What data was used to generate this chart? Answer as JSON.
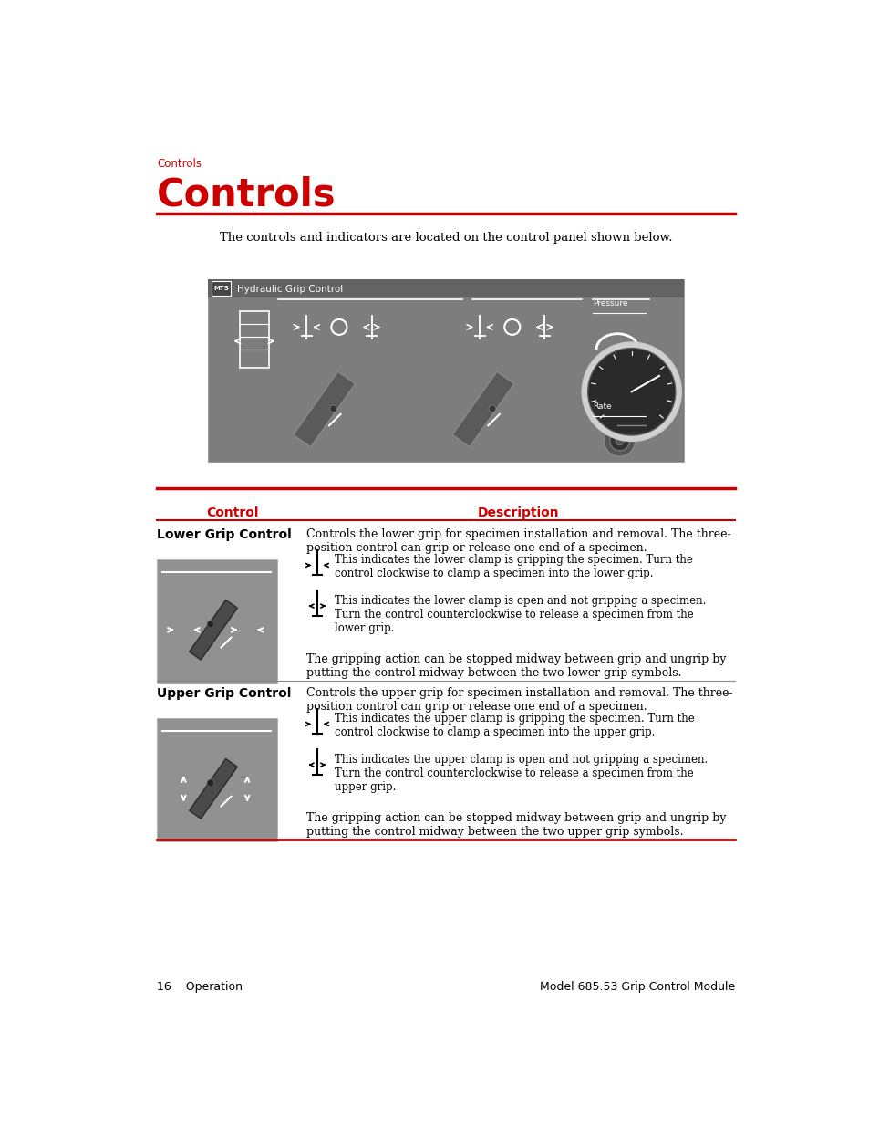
{
  "page_color": "#ffffff",
  "red_color": "#cc0000",
  "black_color": "#000000",
  "breadcrumb": "Controls",
  "title": "Controls",
  "intro_text": "The controls and indicators are located on the control panel shown below.",
  "table_header_control": "Control",
  "table_header_description": "Description",
  "row1_label": "Lower Grip Control",
  "row1_desc1": "Controls the lower grip for specimen installation and removal. The three-\nposition control can grip or release one end of a specimen.",
  "row1_icon1_desc": "This indicates the lower clamp is gripping the specimen. Turn the\ncontrol clockwise to clamp a specimen into the lower grip.",
  "row1_icon2_desc": "This indicates the lower clamp is open and not gripping a specimen.\nTurn the control counterclockwise to release a specimen from the\nlower grip.",
  "row1_desc2": "The gripping action can be stopped midway between grip and ungrip by\nputting the control midway between the two lower grip symbols.",
  "row2_label": "Upper Grip Control",
  "row2_desc1": "Controls the upper grip for specimen installation and removal. The three-\nposition control can grip or release one end of a specimen.",
  "row2_icon1_desc": "This indicates the upper clamp is gripping the specimen. Turn the\ncontrol clockwise to clamp a specimen into the upper grip.",
  "row2_icon2_desc": "This indicates the upper clamp is open and not gripping a specimen.\nTurn the control counterclockwise to release a specimen from the\nupper grip.",
  "row2_desc2": "The gripping action can be stopped midway between grip and ungrip by\nputting the control midway between the two upper grip symbols.",
  "footer_left": "16    Operation",
  "footer_right": "Model 685.53 Grip Control Module",
  "panel_bg": "#7d7d7d",
  "panel_label": "Hydraulic Grip Control"
}
